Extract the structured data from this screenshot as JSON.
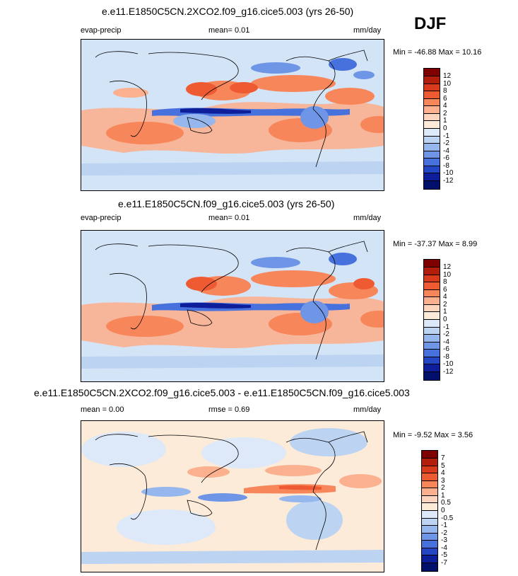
{
  "season": "DJF",
  "panels": [
    {
      "title": "e.e11.E1850C5CN.2XCO2.f09_g16.cice5.003 (yrs 26-50)",
      "left_label": "evap-precip",
      "center_label": "mean=  0.01",
      "right_label": "mm/day",
      "stats": "Min = -46.88 Max =  10.16",
      "colorbar_labels": [
        "12",
        "10",
        "8",
        "6",
        "4",
        "2",
        "1",
        "0",
        "-1",
        "-2",
        "-4",
        "-6",
        "-8",
        "-10",
        "-12"
      ]
    },
    {
      "title": "e.e11.E1850C5CN.f09_g16.cice5.003 (yrs 26-50)",
      "left_label": "evap-precip",
      "center_label": "mean=  0.01",
      "right_label": "mm/day",
      "stats": "Min = -37.37 Max =  8.99",
      "colorbar_labels": [
        "12",
        "10",
        "8",
        "6",
        "4",
        "2",
        "1",
        "0",
        "-1",
        "-2",
        "-4",
        "-6",
        "-8",
        "-10",
        "-12"
      ]
    },
    {
      "title": "e.e11.E1850C5CN.2XCO2.f09_g16.cice5.003 - e.e11.E1850C5CN.f09_g16.cice5.003",
      "left_label": "mean =  0.00",
      "center_label": "rmse =  0.69",
      "right_label": "mm/day",
      "stats": "Min = -9.52 Max =  3.56",
      "colorbar_labels": [
        "7",
        "5",
        "4",
        "3",
        "2",
        "1",
        "0.5",
        "0",
        "-0.5",
        "-1",
        "-2",
        "-3",
        "-4",
        "-5",
        "-7"
      ]
    }
  ],
  "colorbar_colors": [
    "#7f0000",
    "#b21d0c",
    "#d83a1b",
    "#ee5b33",
    "#f7865b",
    "#fbb08f",
    "#fdd4bd",
    "#fdebd9",
    "#dde9f8",
    "#bdd3f2",
    "#96b7ed",
    "#6f95e6",
    "#4772dd",
    "#2347c4",
    "#0e1d9a",
    "#03106b"
  ]
}
